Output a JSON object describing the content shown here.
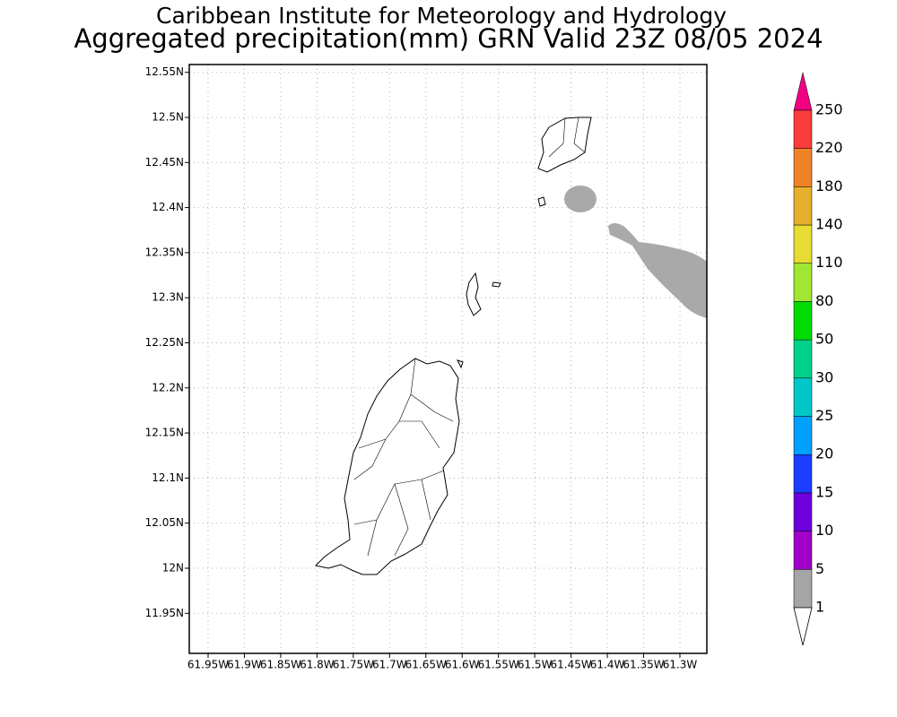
{
  "header": {
    "title": "Caribbean Institute for Meteorology and Hydrology",
    "subtitle": "Aggregated precipitation(mm) GRN Valid 23Z 08/05 2024"
  },
  "map": {
    "lat_ticks": [
      {
        "value": 12.55,
        "label": "12.55N"
      },
      {
        "value": 12.5,
        "label": "12.5N"
      },
      {
        "value": 12.45,
        "label": "12.45N"
      },
      {
        "value": 12.4,
        "label": "12.4N"
      },
      {
        "value": 12.35,
        "label": "12.35N"
      },
      {
        "value": 12.3,
        "label": "12.3N"
      },
      {
        "value": 12.25,
        "label": "12.25N"
      },
      {
        "value": 12.2,
        "label": "12.2N"
      },
      {
        "value": 12.15,
        "label": "12.15N"
      },
      {
        "value": 12.1,
        "label": "12.1N"
      },
      {
        "value": 12.05,
        "label": "12.05N"
      },
      {
        "value": 12.0,
        "label": "12N"
      },
      {
        "value": 11.95,
        "label": "11.95N"
      }
    ],
    "lon_ticks": [
      {
        "value": -61.95,
        "label": "61.95W"
      },
      {
        "value": -61.9,
        "label": "61.9W"
      },
      {
        "value": -61.85,
        "label": "61.85W"
      },
      {
        "value": -61.8,
        "label": "61.8W"
      },
      {
        "value": -61.75,
        "label": "61.75W"
      },
      {
        "value": -61.7,
        "label": "61.7W"
      },
      {
        "value": -61.65,
        "label": "61.65W"
      },
      {
        "value": -61.6,
        "label": "61.6W"
      },
      {
        "value": -61.55,
        "label": "61.55W"
      },
      {
        "value": -61.5,
        "label": "61.5W"
      },
      {
        "value": -61.45,
        "label": "61.45W"
      },
      {
        "value": -61.4,
        "label": "61.4W"
      },
      {
        "value": -61.35,
        "label": "61.35W"
      },
      {
        "value": -61.3,
        "label": "61.3W"
      }
    ]
  },
  "colorbar": {
    "levels": [
      1,
      5,
      10,
      15,
      20,
      25,
      30,
      50,
      80,
      110,
      140,
      180,
      220,
      250
    ],
    "colors": [
      "#a5a5a5",
      "#a000c8",
      "#6e00dc",
      "#1e3cff",
      "#00a0ff",
      "#00c8c8",
      "#00d28c",
      "#00dc00",
      "#a0e632",
      "#e6dc32",
      "#e6af2d",
      "#f08228",
      "#fa3c3c"
    ],
    "over_color": "#f00082"
  }
}
